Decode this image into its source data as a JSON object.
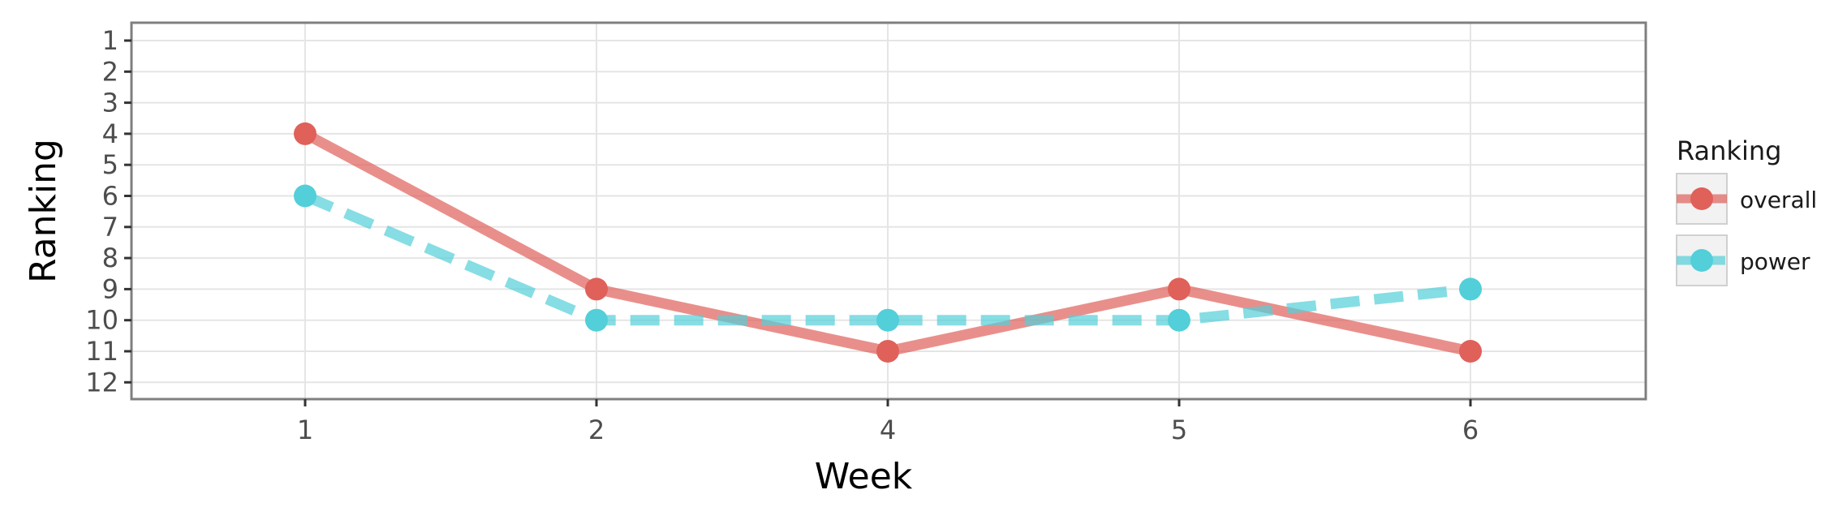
{
  "chart_data": {
    "type": "line",
    "xlabel": "Week",
    "ylabel": "Ranking",
    "x": [
      1,
      2,
      4,
      5,
      6
    ],
    "x_tick_labels": [
      "1",
      "2",
      "4",
      "5",
      "6"
    ],
    "y_tick_labels": [
      "1",
      "2",
      "3",
      "4",
      "5",
      "6",
      "7",
      "8",
      "9",
      "10",
      "11",
      "12"
    ],
    "ylim": [
      1,
      12
    ],
    "y_reversed": true,
    "grid": true,
    "legend": {
      "title": "Ranking",
      "position": "right"
    },
    "series": [
      {
        "name": "overall",
        "values": [
          4,
          9,
          11,
          9,
          11
        ],
        "color": "#e0605a",
        "line_style": "solid"
      },
      {
        "name": "power",
        "values": [
          6,
          10,
          10,
          10,
          9
        ],
        "color": "#52cfd9",
        "line_style": "dashed"
      }
    ]
  }
}
